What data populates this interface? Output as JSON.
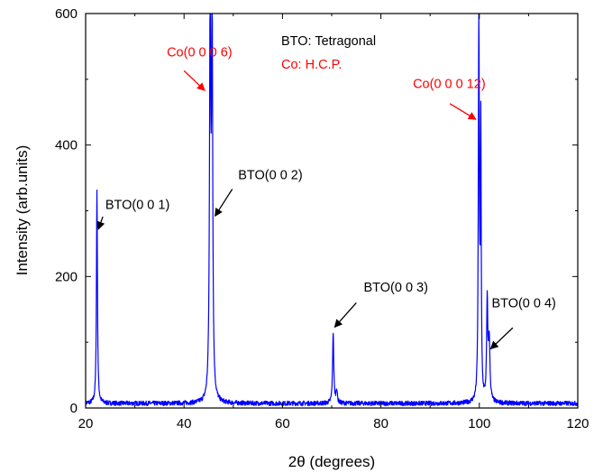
{
  "chart_data": {
    "type": "line",
    "xlabel": "2θ (degrees)",
    "ylabel": "Intensity (arb.units)",
    "xlim": [
      20,
      120
    ],
    "ylim": [
      0,
      600
    ],
    "x_ticks": [
      20,
      40,
      60,
      80,
      100,
      120
    ],
    "y_ticks": [
      0,
      200,
      400,
      600
    ],
    "grid": false,
    "line_color": "#0000ff",
    "baseline": 7,
    "series": [
      {
        "peaks": [
          {
            "x": 22.3,
            "y": 332,
            "w": 0.12
          },
          {
            "x": 45.3,
            "y": 600,
            "w": 0.15
          },
          {
            "x": 45.7,
            "y": 600,
            "w": 0.14
          },
          {
            "x": 70.3,
            "y": 115,
            "w": 0.14
          },
          {
            "x": 71.0,
            "y": 28,
            "w": 0.15
          },
          {
            "x": 99.9,
            "y": 600,
            "w": 0.12
          },
          {
            "x": 100.3,
            "y": 415,
            "w": 0.1
          },
          {
            "x": 101.6,
            "y": 155,
            "w": 0.14
          },
          {
            "x": 102.0,
            "y": 100,
            "w": 0.18
          }
        ]
      }
    ],
    "legend_text": [
      {
        "text": "BTO: Tetragonal",
        "color": "#000000"
      },
      {
        "text": "Co: H.C.P.",
        "color": "#ff0000"
      }
    ],
    "annotations": [
      {
        "text": "Co(0 0 0 6)",
        "color": "#ff0000",
        "tx": 36.5,
        "ty": 535,
        "ax1": 40.0,
        "ay1": 513,
        "ax2": 44.2,
        "ay2": 483
      },
      {
        "text": "BTO(0 0 1)",
        "color": "#000000",
        "tx": 24.0,
        "ty": 303,
        "ax1": 23.5,
        "ay1": 291,
        "ax2": 22.6,
        "ay2": 272
      },
      {
        "text": "BTO(0 0 2)",
        "color": "#000000",
        "tx": 51.0,
        "ty": 348,
        "ax1": 49.8,
        "ay1": 333,
        "ax2": 46.3,
        "ay2": 292
      },
      {
        "text": "Co(0 0 0 12)",
        "color": "#ff0000",
        "tx": 86.5,
        "ty": 487,
        "ax1": 94.0,
        "ay1": 463,
        "ax2": 99.3,
        "ay2": 439
      },
      {
        "text": "BTO(0 0 3)",
        "color": "#000000",
        "tx": 76.5,
        "ty": 177,
        "ax1": 75.0,
        "ay1": 160,
        "ax2": 70.6,
        "ay2": 123
      },
      {
        "text": "BTO(0 0 4)",
        "color": "#000000",
        "tx": 102.5,
        "ty": 153,
        "ax1": 106.8,
        "ay1": 122,
        "ax2": 102.3,
        "ay2": 90
      }
    ]
  }
}
